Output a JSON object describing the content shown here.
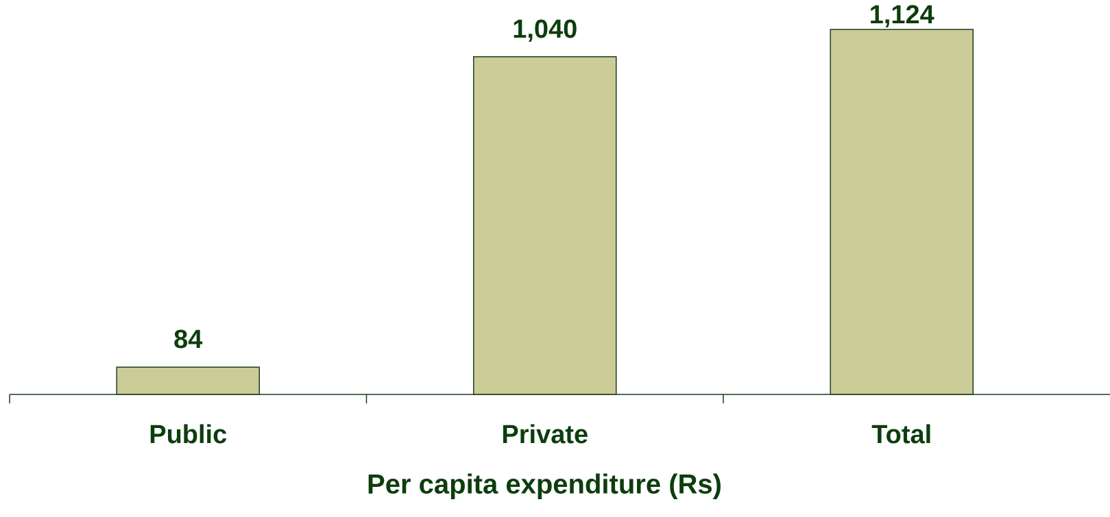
{
  "chart_data": {
    "type": "bar",
    "categories": [
      "Public",
      "Private",
      "Total"
    ],
    "values": [
      84,
      1040,
      1124
    ],
    "value_labels": [
      "84",
      "1,040",
      "1,124"
    ],
    "xlabel": "Per capita expenditure (Rs)",
    "color": "#cccc99"
  }
}
